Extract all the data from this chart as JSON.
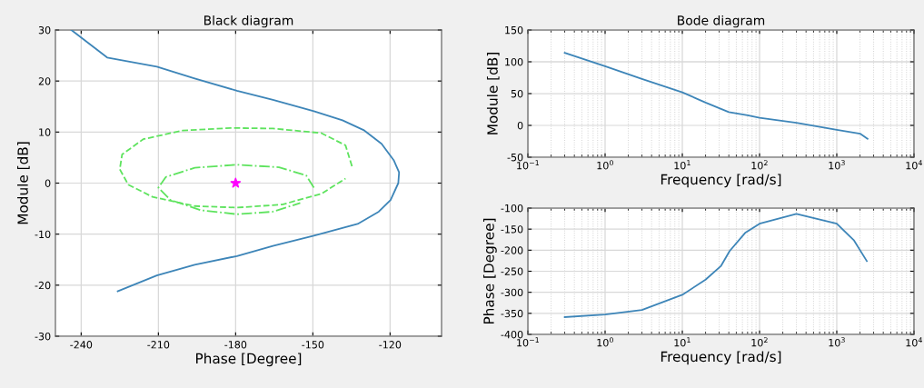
{
  "chart_data": [
    {
      "type": "line",
      "title": "Black diagram",
      "xlabel": "Phase [Degree]",
      "ylabel": "Module [dB]",
      "xlim": [
        -250,
        -100
      ],
      "xticks": [
        -240,
        -210,
        -180,
        -150,
        -120
      ],
      "ylim": [
        -30,
        30
      ],
      "yticks": [
        -30,
        -20,
        -10,
        0,
        10,
        20,
        30
      ],
      "grid": true,
      "marker": "none",
      "series": [
        {
          "color": "#3d85b8",
          "line_style": "solid",
          "x": [
            -243.8,
            -229.9,
            -210.6,
            -195.9,
            -179.5,
            -165.5,
            -149.6,
            -138.5,
            -130.3,
            -123.3,
            -118.6,
            -116.5,
            -116.8,
            -119.8,
            -124.4,
            -132.6,
            -149.6,
            -165.5,
            -179.5,
            -195.9,
            -210.6,
            -225.8
          ],
          "values": [
            30,
            24.6,
            22.8,
            20.5,
            18.1,
            16.3,
            14.1,
            12.3,
            10.4,
            7.7,
            4.5,
            2.1,
            0,
            -3.3,
            -5.6,
            -8.0,
            -10.3,
            -12.3,
            -14.3,
            -16.0,
            -18.1,
            -21.2
          ]
        },
        {
          "color": "#5ee35e",
          "line_style": "dashed",
          "x": [
            -134.8,
            -137.3,
            -146.7,
            -165.5,
            -181.9,
            -200.6,
            -215.9,
            -224.1,
            -225.0,
            -221.7,
            -212.3,
            -195.9,
            -179.5,
            -161.9,
            -146.7,
            -137.3
          ],
          "values": [
            3.3,
            7.4,
            9.8,
            10.7,
            10.8,
            10.3,
            8.6,
            5.6,
            2.7,
            -0.3,
            -2.7,
            -4.5,
            -4.8,
            -4.2,
            -2.1,
            0.9
          ]
        },
        {
          "color": "#5ee35e",
          "line_style": "dashdot",
          "x": [
            -149.6,
            -152.6,
            -163.1,
            -179.5,
            -195.9,
            -207.1,
            -210.0,
            -205.3,
            -193.6,
            -179.5,
            -165.5,
            -154.9
          ],
          "values": [
            -0.9,
            1.5,
            3.1,
            3.6,
            3.0,
            1.2,
            -0.9,
            -3.3,
            -5.3,
            -6.1,
            -5.6,
            -3.9
          ]
        },
        {
          "type": "scatter",
          "marker": "star",
          "color": "#ff00ff",
          "x": [
            -180
          ],
          "values": [
            0
          ]
        }
      ]
    },
    {
      "type": "line",
      "title": "Bode diagram",
      "xlabel": "Frequency [rad/s]",
      "ylabel": "Module [dB]",
      "log": "x",
      "xlim": [
        0.1,
        10000
      ],
      "xticks": [
        {
          "value": 0.1,
          "label": "10$^{−1}$"
        },
        {
          "value": 1,
          "label": "10$^{0}$"
        },
        {
          "value": 10,
          "label": "10$^{1}$"
        },
        {
          "value": 100,
          "label": "10$^{2}$"
        },
        {
          "value": 1000,
          "label": "10$^{3}$"
        },
        {
          "value": 10000,
          "label": "10$^{4}$"
        }
      ],
      "ylim": [
        -50,
        150
      ],
      "yticks": [
        -50,
        0,
        50,
        100,
        150
      ],
      "grid": true,
      "marker": "none",
      "series": [
        {
          "color": "#3d85b8",
          "x": [
            0.3,
            1,
            3,
            10,
            20,
            40,
            70,
            100,
            300,
            1000,
            2000,
            2500
          ],
          "values": [
            114,
            93,
            73,
            52,
            36,
            21,
            16,
            12,
            4,
            -7,
            -13,
            -21
          ]
        }
      ]
    },
    {
      "type": "line",
      "xlabel": "Frequency [rad/s]",
      "ylabel": "Phase [Degree]",
      "log": "x",
      "xlim": [
        0.1,
        10000
      ],
      "xticks": [
        {
          "value": 0.1,
          "label": "10$^{−1}$"
        },
        {
          "value": 1,
          "label": "10$^{0}$"
        },
        {
          "value": 10,
          "label": "10$^{1}$"
        },
        {
          "value": 100,
          "label": "10$^{2}$"
        },
        {
          "value": 1000,
          "label": "10$^{3}$"
        },
        {
          "value": 10000,
          "label": "10$^{4}$"
        }
      ],
      "ylim": [
        -400,
        -100
      ],
      "yticks": [
        -400,
        -350,
        -300,
        -250,
        -200,
        -150,
        -100
      ],
      "grid": true,
      "marker": "none",
      "series": [
        {
          "color": "#3d85b8",
          "x": [
            0.3,
            1,
            3,
            10,
            20,
            31.5,
            41,
            65,
            100,
            300,
            1000,
            1675,
            2450
          ],
          "values": [
            -359,
            -353,
            -342,
            -306,
            -270,
            -238,
            -202,
            -159,
            -137,
            -114,
            -137,
            -177,
            -226
          ]
        }
      ]
    }
  ]
}
